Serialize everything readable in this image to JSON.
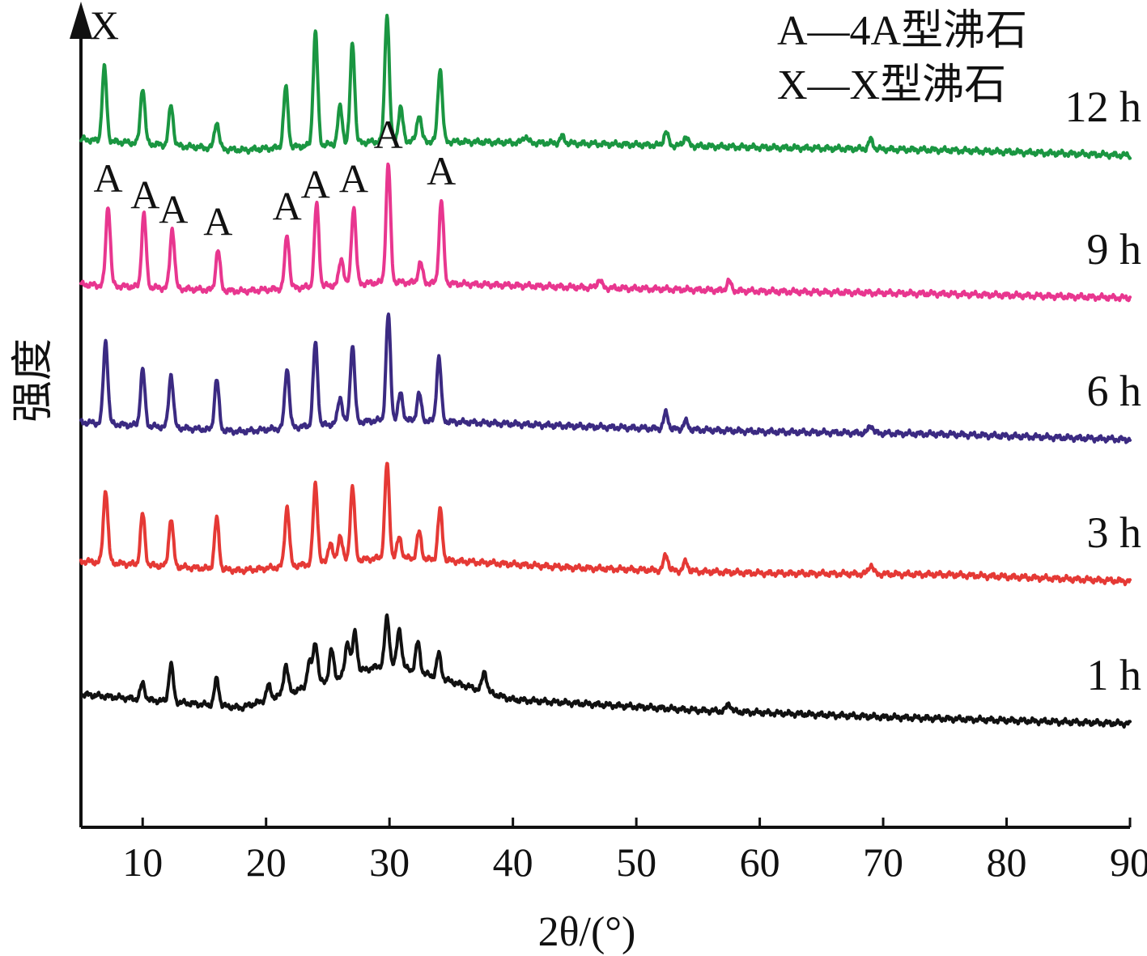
{
  "chart_data": {
    "type": "line",
    "title": "",
    "xlabel": "2θ/(°)",
    "ylabel": "强度",
    "xlim": [
      5,
      90
    ],
    "x_ticks": [
      10,
      20,
      30,
      40,
      50,
      60,
      70,
      80,
      90
    ],
    "y_ticks_shown": false,
    "grid": false,
    "legend_position": "top-right",
    "legend": [
      "A—4A型沸石",
      "X—X型沸石"
    ],
    "peak_markers": [
      {
        "label": "X",
        "x": 6.9,
        "series": "12 h"
      },
      {
        "label": "A",
        "x": 7.2,
        "series": "9 h"
      },
      {
        "label": "A",
        "x": 10.2,
        "series": "9 h"
      },
      {
        "label": "A",
        "x": 12.5,
        "series": "9 h"
      },
      {
        "label": "A",
        "x": 16.1,
        "series": "9 h"
      },
      {
        "label": "A",
        "x": 21.7,
        "series": "9 h"
      },
      {
        "label": "A",
        "x": 24.0,
        "series": "9 h"
      },
      {
        "label": "A",
        "x": 27.1,
        "series": "9 h"
      },
      {
        "label": "A",
        "x": 29.9,
        "series": "9 h"
      },
      {
        "label": "A",
        "x": 34.2,
        "series": "9 h"
      }
    ],
    "series": [
      {
        "name": "12 h",
        "color": "#1a9641",
        "baseline": [
          [
            5,
            0.12
          ],
          [
            18,
            0.04
          ],
          [
            30,
            0.11
          ],
          [
            45,
            0.09
          ],
          [
            60,
            0.06
          ],
          [
            75,
            0.04
          ],
          [
            90,
            0.0
          ]
        ],
        "peaks": [
          [
            6.9,
            0.55
          ],
          [
            10.0,
            0.42
          ],
          [
            12.3,
            0.3
          ],
          [
            16.0,
            0.2
          ],
          [
            21.6,
            0.45
          ],
          [
            24.0,
            0.85
          ],
          [
            26.0,
            0.28
          ],
          [
            27.0,
            0.75
          ],
          [
            29.8,
            0.95
          ],
          [
            30.9,
            0.25
          ],
          [
            32.4,
            0.2
          ],
          [
            34.1,
            0.55
          ],
          [
            41.0,
            0.05
          ],
          [
            44.0,
            0.05
          ],
          [
            52.4,
            0.1
          ],
          [
            54.0,
            0.07
          ],
          [
            69.0,
            0.07
          ]
        ]
      },
      {
        "name": "9 h",
        "color": "#e8368f",
        "baseline": [
          [
            5,
            0.1
          ],
          [
            18,
            0.05
          ],
          [
            30,
            0.12
          ],
          [
            45,
            0.08
          ],
          [
            60,
            0.05
          ],
          [
            75,
            0.03
          ],
          [
            90,
            0.0
          ]
        ],
        "peaks": [
          [
            7.2,
            0.6
          ],
          [
            10.1,
            0.55
          ],
          [
            12.4,
            0.45
          ],
          [
            16.1,
            0.3
          ],
          [
            21.7,
            0.4
          ],
          [
            24.1,
            0.62
          ],
          [
            26.1,
            0.2
          ],
          [
            27.1,
            0.58
          ],
          [
            29.9,
            0.88
          ],
          [
            32.5,
            0.15
          ],
          [
            34.2,
            0.62
          ],
          [
            47.0,
            0.06
          ],
          [
            57.5,
            0.07
          ]
        ]
      },
      {
        "name": "6 h",
        "color": "#3b2a82",
        "baseline": [
          [
            5,
            0.13
          ],
          [
            18,
            0.06
          ],
          [
            30,
            0.15
          ],
          [
            45,
            0.1
          ],
          [
            60,
            0.06
          ],
          [
            75,
            0.04
          ],
          [
            90,
            0.0
          ]
        ],
        "peaks": [
          [
            7.0,
            0.62
          ],
          [
            10.0,
            0.42
          ],
          [
            12.3,
            0.4
          ],
          [
            16.0,
            0.38
          ],
          [
            21.7,
            0.45
          ],
          [
            24.0,
            0.62
          ],
          [
            26.0,
            0.2
          ],
          [
            27.0,
            0.58
          ],
          [
            29.9,
            0.78
          ],
          [
            30.9,
            0.2
          ],
          [
            32.4,
            0.2
          ],
          [
            34.0,
            0.48
          ],
          [
            52.4,
            0.12
          ],
          [
            54.0,
            0.06
          ],
          [
            69.0,
            0.06
          ]
        ]
      },
      {
        "name": "3 h",
        "color": "#e53935",
        "baseline": [
          [
            5,
            0.15
          ],
          [
            18,
            0.08
          ],
          [
            30,
            0.18
          ],
          [
            45,
            0.1
          ],
          [
            60,
            0.06
          ],
          [
            75,
            0.05
          ],
          [
            90,
            0.0
          ]
        ],
        "peaks": [
          [
            7.0,
            0.55
          ],
          [
            10.0,
            0.38
          ],
          [
            12.3,
            0.36
          ],
          [
            16.0,
            0.38
          ],
          [
            21.7,
            0.45
          ],
          [
            24.0,
            0.6
          ],
          [
            25.2,
            0.15
          ],
          [
            26.0,
            0.2
          ],
          [
            27.0,
            0.55
          ],
          [
            29.8,
            0.7
          ],
          [
            30.8,
            0.15
          ],
          [
            32.4,
            0.2
          ],
          [
            34.1,
            0.38
          ],
          [
            52.4,
            0.12
          ],
          [
            54.0,
            0.07
          ],
          [
            69.0,
            0.07
          ]
        ]
      },
      {
        "name": "1 h",
        "color": "#111111",
        "baseline": [
          [
            5,
            0.22
          ],
          [
            18,
            0.12
          ],
          [
            27,
            0.38
          ],
          [
            30,
            0.45
          ],
          [
            40,
            0.18
          ],
          [
            55,
            0.1
          ],
          [
            70,
            0.05
          ],
          [
            90,
            0.0
          ]
        ],
        "peaks": [
          [
            10.0,
            0.12
          ],
          [
            12.3,
            0.28
          ],
          [
            16.0,
            0.2
          ],
          [
            20.2,
            0.1
          ],
          [
            21.6,
            0.22
          ],
          [
            23.5,
            0.18
          ],
          [
            24.0,
            0.32
          ],
          [
            25.3,
            0.22
          ],
          [
            26.6,
            0.25
          ],
          [
            27.2,
            0.3
          ],
          [
            29.8,
            0.35
          ],
          [
            30.8,
            0.28
          ],
          [
            32.3,
            0.22
          ],
          [
            34.0,
            0.18
          ],
          [
            37.7,
            0.15
          ],
          [
            57.5,
            0.06
          ]
        ]
      }
    ]
  }
}
